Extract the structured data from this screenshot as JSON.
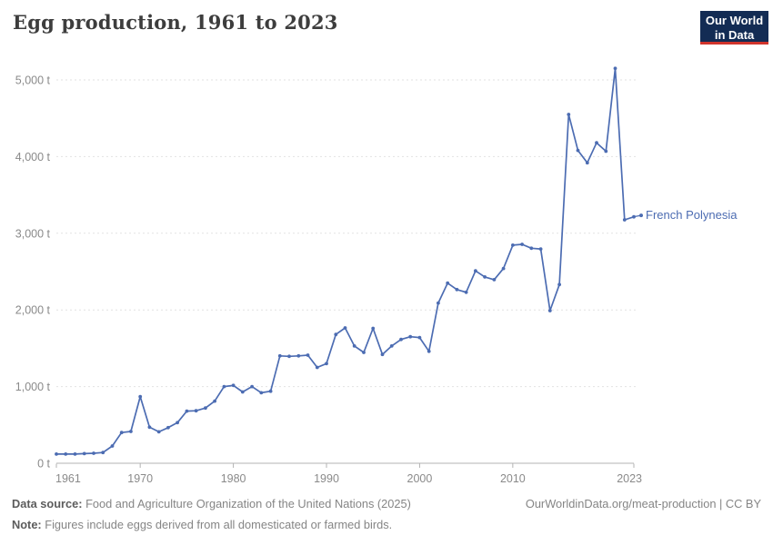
{
  "header": {
    "title": "Egg production, 1961 to 2023",
    "logo": {
      "line1": "Our World",
      "line2": "in Data"
    }
  },
  "chart_data": {
    "type": "line",
    "title": "Egg production, 1961 to 2023",
    "unit": "t",
    "xlim": [
      1961,
      2023
    ],
    "ylim": [
      0,
      5000
    ],
    "grid": "horizontal-dashed",
    "legend_position": "end-of-line-label",
    "x_tick_years": [
      1961,
      1970,
      1980,
      1990,
      2000,
      2010,
      2023
    ],
    "y_tick_labels": [
      "0 t",
      "1,000 t",
      "2,000 t",
      "3,000 t",
      "4,000 t",
      "5,000 t"
    ],
    "series": [
      {
        "name": "French Polynesia",
        "color": "#4c6cb2",
        "years": [
          1961,
          1962,
          1963,
          1964,
          1965,
          1966,
          1967,
          1968,
          1969,
          1970,
          1971,
          1972,
          1973,
          1974,
          1975,
          1976,
          1977,
          1978,
          1979,
          1980,
          1981,
          1982,
          1983,
          1984,
          1985,
          1986,
          1987,
          1988,
          1989,
          1990,
          1991,
          1992,
          1993,
          1994,
          1995,
          1996,
          1997,
          1998,
          1999,
          2000,
          2001,
          2002,
          2003,
          2004,
          2005,
          2006,
          2007,
          2008,
          2009,
          2010,
          2011,
          2012,
          2013,
          2014,
          2015,
          2016,
          2017,
          2018,
          2019,
          2020,
          2021,
          2022,
          2023
        ],
        "values": [
          120,
          120,
          120,
          125,
          130,
          140,
          225,
          400,
          415,
          870,
          470,
          410,
          465,
          530,
          680,
          685,
          720,
          810,
          1000,
          1015,
          930,
          1000,
          920,
          940,
          1400,
          1395,
          1400,
          1410,
          1250,
          1300,
          1680,
          1765,
          1530,
          1445,
          1760,
          1420,
          1530,
          1615,
          1650,
          1640,
          1460,
          2090,
          2350,
          2265,
          2230,
          2510,
          2430,
          2395,
          2540,
          2845,
          2855,
          2805,
          2795,
          1990,
          2330,
          4550,
          4080,
          3920,
          4180,
          4070,
          5150,
          3175,
          3215
        ]
      }
    ]
  },
  "footer": {
    "source_label": "Data source:",
    "source_text": " Food and Agriculture Organization of the United Nations (2025)",
    "note_label": "Note:",
    "note_text": " Figures include eggs derived from all domesticated or farmed birds.",
    "attribution": "OurWorldinData.org/meat-production | CC BY"
  },
  "colors": {
    "series": "#4c6cb2",
    "title_text": "#3d3d3d",
    "axis_text": "#8a8a8a",
    "gridline": "#e2e2e2",
    "axis_line": "#b3b3b3",
    "footer_text": "#858585",
    "logo_bg": "#132c54",
    "logo_accent": "#d0342c",
    "logo_text": "#ffffff"
  }
}
